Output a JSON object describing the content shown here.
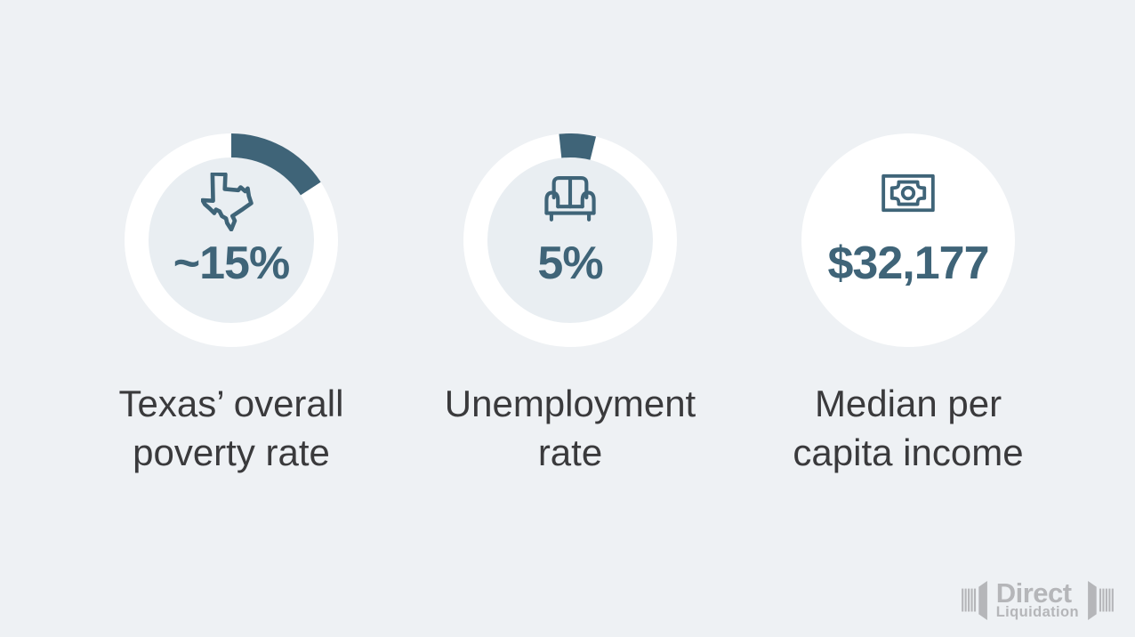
{
  "colors": {
    "background": "#eef1f4",
    "accent": "#3f6478",
    "ring_fill": "#ffffff",
    "inner_disc": "#e9eef2",
    "label_text": "#3a3a3c",
    "logo_gray": "#b5b6b9"
  },
  "stats": [
    {
      "value": "~15%",
      "label_line1": "Texas’ overall",
      "label_line2": "poverty rate",
      "icon": "texas-state-icon",
      "ring": {
        "start_deg": 0,
        "sweep_deg": 57,
        "has_inner_disc": true
      }
    },
    {
      "value": "5%",
      "label_line1": "Unemployment",
      "label_line2": "rate",
      "icon": "couch-icon",
      "ring": {
        "start_deg": -6,
        "sweep_deg": 20,
        "has_inner_disc": true
      }
    },
    {
      "value": "$32,177",
      "label_line1": "Median per",
      "label_line2": "capita income",
      "icon": "money-bill-icon",
      "ring": {
        "start_deg": 0,
        "sweep_deg": 0,
        "has_inner_disc": false
      }
    }
  ],
  "logo": {
    "word": "Direct",
    "sub": "Liquidation"
  },
  "chart_data": {
    "type": "pie",
    "title": "",
    "legend_position": "none",
    "series": [
      {
        "name": "Texas’ overall poverty rate",
        "value_label": "~15%",
        "value_percent": 15,
        "donut_ring_shown": true
      },
      {
        "name": "Unemployment rate",
        "value_label": "5%",
        "value_percent": 5,
        "donut_ring_shown": true
      },
      {
        "name": "Median per capita income",
        "value_label": "$32,177",
        "value_usd": 32177,
        "donut_ring_shown": false
      }
    ]
  }
}
